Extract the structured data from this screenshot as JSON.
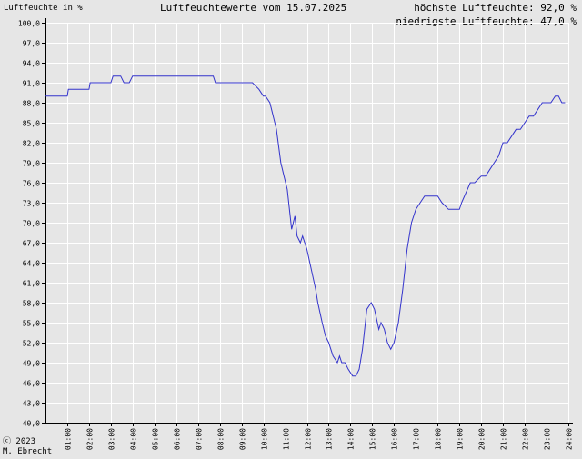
{
  "header": {
    "ylabel": "Luftfeuchte in %",
    "title": "Luftfeuchtewerte vom 15.07.2025",
    "max_line": "höchste Luftfeuchte: 92,0 %",
    "min_line": "niedrigste Luftfeuchte: 47,0 %"
  },
  "credit": {
    "line1": "ⓒ 2023",
    "line2": "M. Ebrecht"
  },
  "colors": {
    "line": "#3333cc",
    "grid": "#ffffff",
    "axis": "#000000",
    "background": "#e6e6e6"
  },
  "chart_data": {
    "type": "line",
    "title": "Luftfeuchtewerte vom 15.07.2025",
    "ylabel": "Luftfeuchte in %",
    "xlabel": "",
    "ylim": [
      40,
      100
    ],
    "xlim": [
      0,
      24
    ],
    "grid": true,
    "yticks": [
      "100,0",
      "97,0",
      "94,0",
      "91,0",
      "88,0",
      "85,0",
      "82,0",
      "79,0",
      "76,0",
      "73,0",
      "70,0",
      "67,0",
      "64,0",
      "61,0",
      "58,0",
      "55,0",
      "52,0",
      "49,0",
      "46,0",
      "43,0",
      "40,0"
    ],
    "ytick_values": [
      100,
      97,
      94,
      91,
      88,
      85,
      82,
      79,
      76,
      73,
      70,
      67,
      64,
      61,
      58,
      55,
      52,
      49,
      46,
      43,
      40
    ],
    "xticks": [
      "01:00",
      "02:00",
      "03:00",
      "04:00",
      "05:00",
      "06:00",
      "07:00",
      "08:00",
      "09:00",
      "10:00",
      "11:00",
      "12:00",
      "13:00",
      "14:00",
      "15:00",
      "16:00",
      "17:00",
      "18:00",
      "19:00",
      "20:00",
      "21:00",
      "22:00",
      "23:00",
      "24:00"
    ],
    "xtick_values": [
      1,
      2,
      3,
      4,
      5,
      6,
      7,
      8,
      9,
      10,
      11,
      12,
      13,
      14,
      15,
      16,
      17,
      18,
      19,
      20,
      21,
      22,
      23,
      24
    ],
    "series": [
      {
        "x": [
          0.0,
          1.0,
          1.05,
          2.0,
          2.05,
          3.0,
          3.1,
          3.45,
          3.6,
          3.85,
          4.0,
          4.1,
          7.7,
          7.8,
          8.0,
          9.5,
          9.8,
          10.0,
          10.1,
          10.3,
          10.6,
          10.8,
          10.95,
          11.1,
          11.2,
          11.3,
          11.45,
          11.55,
          11.7,
          11.8,
          12.0,
          12.2,
          12.4,
          12.5,
          12.7,
          12.85,
          13.0,
          13.2,
          13.4,
          13.5,
          13.6,
          13.75,
          13.9,
          14.1,
          14.25,
          14.4,
          14.55,
          14.75,
          14.95,
          15.1,
          15.3,
          15.4,
          15.55,
          15.7,
          15.85,
          16.0,
          16.2,
          16.4,
          16.6,
          16.8,
          17.0,
          17.2,
          17.4,
          17.5,
          18.0,
          18.2,
          18.5,
          18.7,
          19.0,
          19.1,
          19.5,
          19.7,
          20.0,
          20.2,
          20.4,
          20.6,
          20.8,
          21.0,
          21.2,
          21.4,
          21.6,
          21.8,
          22.0,
          22.2,
          22.4,
          22.6,
          22.8,
          23.0,
          23.2,
          23.4,
          23.55,
          23.7,
          23.85
        ],
        "y": [
          89,
          89,
          90,
          90,
          91,
          91,
          92,
          92,
          91,
          91,
          92,
          92,
          92,
          91,
          91,
          91,
          90,
          89,
          89,
          88,
          84,
          79,
          77,
          75,
          72,
          69,
          71,
          68,
          67,
          68,
          66,
          63,
          60,
          58,
          55,
          53,
          52,
          50,
          49,
          50,
          49,
          49,
          48,
          47,
          47,
          48,
          51,
          57,
          58,
          57,
          54,
          55,
          54,
          52,
          51,
          52,
          55,
          60,
          66,
          70,
          72,
          73,
          74,
          74,
          74,
          73,
          72,
          72,
          72,
          73,
          76,
          76,
          77,
          77,
          78,
          79,
          80,
          82,
          82,
          83,
          84,
          84,
          85,
          86,
          86,
          87,
          88,
          88,
          88,
          89,
          89,
          88,
          88
        ]
      }
    ]
  }
}
